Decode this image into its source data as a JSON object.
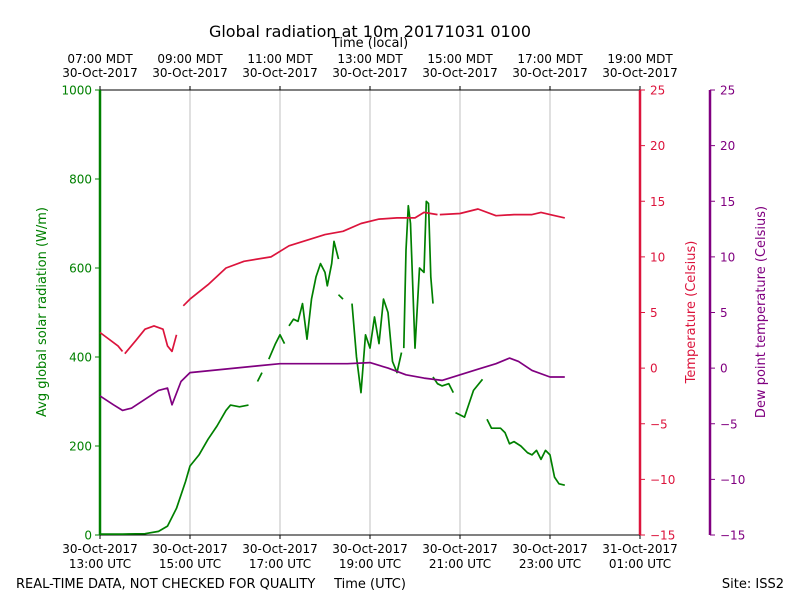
{
  "chart_data": {
    "type": "line",
    "title": "Global radiation at 10m 20171031 0100",
    "top_axis_label": "Time (local)",
    "xlabel": "Time (UTC)",
    "footer_left": "REAL-TIME DATA, NOT CHECKED FOR QUALITY",
    "footer_right": "Site: ISS2",
    "x_range_hours_utc": [
      13,
      25
    ],
    "bottom_ticks": [
      {
        "hour": 13,
        "date": "30-Oct-2017",
        "time": "13:00 UTC"
      },
      {
        "hour": 15,
        "date": "30-Oct-2017",
        "time": "15:00 UTC"
      },
      {
        "hour": 17,
        "date": "30-Oct-2017",
        "time": "17:00 UTC"
      },
      {
        "hour": 19,
        "date": "30-Oct-2017",
        "time": "19:00 UTC"
      },
      {
        "hour": 21,
        "date": "30-Oct-2017",
        "time": "21:00 UTC"
      },
      {
        "hour": 23,
        "date": "30-Oct-2017",
        "time": "23:00 UTC"
      },
      {
        "hour": 25,
        "date": "31-Oct-2017",
        "time": "01:00 UTC"
      }
    ],
    "top_ticks": [
      {
        "hour": 13,
        "time": "07:00 MDT",
        "date": "30-Oct-2017"
      },
      {
        "hour": 15,
        "time": "09:00 MDT",
        "date": "30-Oct-2017"
      },
      {
        "hour": 17,
        "time": "11:00 MDT",
        "date": "30-Oct-2017"
      },
      {
        "hour": 19,
        "time": "13:00 MDT",
        "date": "30-Oct-2017"
      },
      {
        "hour": 21,
        "time": "15:00 MDT",
        "date": "30-Oct-2017"
      },
      {
        "hour": 23,
        "time": "17:00 MDT",
        "date": "30-Oct-2017"
      },
      {
        "hour": 25,
        "time": "19:00 MDT",
        "date": "30-Oct-2017"
      }
    ],
    "axes": {
      "left": {
        "label": "Avg global solar radiation (W/m)",
        "range": [
          0,
          1000
        ],
        "ticks": [
          "0",
          "200",
          "400",
          "600",
          "800",
          "1000"
        ],
        "color": "#008000"
      },
      "right1": {
        "label": "Temperature (Celsius)",
        "range": [
          -15,
          25
        ],
        "ticks": [
          "−15",
          "−10",
          "−5",
          "0",
          "5",
          "10",
          "15",
          "20",
          "25"
        ],
        "color": "#dc143c"
      },
      "right2": {
        "label": "Dew point temperature (Celsius)",
        "range": [
          -15,
          25
        ],
        "ticks": [
          "−15",
          "−10",
          "−5",
          "0",
          "5",
          "10",
          "15",
          "20",
          "25"
        ],
        "color": "#800080"
      }
    },
    "series": [
      {
        "name": "Avg global solar radiation",
        "axis": "left",
        "color": "#008000",
        "segments": [
          [
            [
              13.0,
              2
            ],
            [
              13.5,
              2
            ],
            [
              14.0,
              3
            ],
            [
              14.3,
              8
            ],
            [
              14.5,
              20
            ],
            [
              14.7,
              60
            ],
            [
              14.9,
              120
            ],
            [
              15.0,
              155
            ],
            [
              15.2,
              180
            ],
            [
              15.4,
              215
            ],
            [
              15.6,
              245
            ],
            [
              15.8,
              280
            ],
            [
              15.9,
              292
            ],
            [
              16.1,
              288
            ],
            [
              16.3,
              292
            ]
          ],
          [
            [
              16.5,
              345
            ],
            [
              16.6,
              365
            ]
          ],
          [
            [
              16.75,
              395
            ],
            [
              16.9,
              430
            ],
            [
              17.0,
              450
            ],
            [
              17.1,
              430
            ]
          ],
          [
            [
              17.2,
              470
            ],
            [
              17.3,
              485
            ],
            [
              17.4,
              480
            ],
            [
              17.5,
              520
            ],
            [
              17.6,
              440
            ],
            [
              17.7,
              530
            ],
            [
              17.8,
              580
            ],
            [
              17.9,
              610
            ],
            [
              18.0,
              590
            ],
            [
              18.05,
              560
            ],
            [
              18.15,
              610
            ],
            [
              18.2,
              660
            ],
            [
              18.3,
              620
            ]
          ],
          [
            [
              18.3,
              540
            ],
            [
              18.4,
              530
            ]
          ],
          [
            [
              18.6,
              520
            ],
            [
              18.7,
              400
            ],
            [
              18.8,
              320
            ],
            [
              18.9,
              450
            ],
            [
              19.0,
              420
            ],
            [
              19.1,
              490
            ],
            [
              19.2,
              430
            ],
            [
              19.3,
              530
            ],
            [
              19.4,
              500
            ],
            [
              19.5,
              390
            ],
            [
              19.6,
              365
            ],
            [
              19.7,
              410
            ]
          ],
          [
            [
              19.75,
              420
            ],
            [
              19.8,
              640
            ],
            [
              19.85,
              740
            ],
            [
              19.9,
              700
            ],
            [
              20.0,
              420
            ],
            [
              20.1,
              600
            ],
            [
              20.2,
              590
            ],
            [
              20.25,
              750
            ],
            [
              20.3,
              745
            ],
            [
              20.35,
              580
            ],
            [
              20.4,
              520
            ]
          ],
          [
            [
              20.4,
              355
            ],
            [
              20.5,
              340
            ],
            [
              20.6,
              335
            ],
            [
              20.75,
              340
            ],
            [
              20.85,
              320
            ]
          ],
          [
            [
              20.9,
              275
            ],
            [
              21.0,
              270
            ],
            [
              21.1,
              265
            ],
            [
              21.3,
              325
            ],
            [
              21.5,
              350
            ]
          ],
          [
            [
              21.6,
              260
            ],
            [
              21.7,
              240
            ],
            [
              21.9,
              240
            ],
            [
              22.0,
              230
            ],
            [
              22.1,
              205
            ],
            [
              22.2,
              210
            ],
            [
              22.35,
              200
            ],
            [
              22.5,
              185
            ],
            [
              22.6,
              180
            ],
            [
              22.7,
              190
            ],
            [
              22.8,
              170
            ],
            [
              22.9,
              190
            ],
            [
              23.0,
              180
            ],
            [
              23.1,
              130
            ],
            [
              23.2,
              115
            ],
            [
              23.33,
              112
            ]
          ]
        ]
      },
      {
        "name": "Temperature",
        "axis": "right1",
        "color": "#dc143c",
        "segments": [
          [
            [
              13.0,
              3.2
            ],
            [
              13.4,
              2.0
            ],
            [
              13.5,
              1.5
            ]
          ],
          [
            [
              13.55,
              1.3
            ],
            [
              13.8,
              2.5
            ],
            [
              14.0,
              3.5
            ],
            [
              14.2,
              3.8
            ],
            [
              14.4,
              3.5
            ],
            [
              14.5,
              2.0
            ],
            [
              14.6,
              1.5
            ],
            [
              14.7,
              3.0
            ]
          ],
          [
            [
              14.85,
              5.6
            ],
            [
              15.0,
              6.2
            ],
            [
              15.4,
              7.5
            ],
            [
              15.8,
              9.0
            ],
            [
              16.2,
              9.6
            ],
            [
              16.8,
              10.0
            ],
            [
              17.2,
              11.0
            ],
            [
              17.6,
              11.5
            ],
            [
              18.0,
              12.0
            ],
            [
              18.4,
              12.3
            ],
            [
              18.8,
              13.0
            ],
            [
              19.2,
              13.4
            ],
            [
              19.6,
              13.5
            ],
            [
              20.0,
              13.5
            ],
            [
              20.2,
              14.0
            ],
            [
              20.5,
              13.8
            ]
          ],
          [
            [
              20.55,
              13.8
            ],
            [
              21.0,
              13.9
            ],
            [
              21.4,
              14.3
            ],
            [
              21.8,
              13.7
            ],
            [
              22.2,
              13.8
            ],
            [
              22.6,
              13.8
            ],
            [
              22.8,
              14.0
            ],
            [
              23.0,
              13.8
            ],
            [
              23.33,
              13.5
            ]
          ]
        ]
      },
      {
        "name": "Dew point temperature",
        "axis": "right2",
        "color": "#800080",
        "segments": [
          [
            [
              13.0,
              -2.5
            ],
            [
              13.3,
              -3.3
            ],
            [
              13.5,
              -3.8
            ],
            [
              13.7,
              -3.6
            ],
            [
              14.0,
              -2.8
            ],
            [
              14.3,
              -2.0
            ],
            [
              14.5,
              -1.8
            ],
            [
              14.6,
              -3.3
            ],
            [
              14.8,
              -1.2
            ],
            [
              15.0,
              -0.4
            ],
            [
              15.5,
              -0.2
            ],
            [
              16.0,
              0.0
            ],
            [
              16.5,
              0.2
            ],
            [
              17.0,
              0.4
            ],
            [
              17.5,
              0.4
            ],
            [
              18.0,
              0.4
            ],
            [
              18.5,
              0.4
            ],
            [
              19.0,
              0.5
            ],
            [
              19.4,
              0.0
            ],
            [
              19.8,
              -0.6
            ],
            [
              20.2,
              -0.9
            ],
            [
              20.6,
              -1.1
            ],
            [
              21.0,
              -0.6
            ],
            [
              21.4,
              -0.1
            ],
            [
              21.8,
              0.4
            ],
            [
              22.1,
              0.9
            ],
            [
              22.3,
              0.6
            ],
            [
              22.6,
              -0.2
            ],
            [
              23.0,
              -0.8
            ],
            [
              23.33,
              -0.8
            ]
          ]
        ]
      }
    ]
  }
}
